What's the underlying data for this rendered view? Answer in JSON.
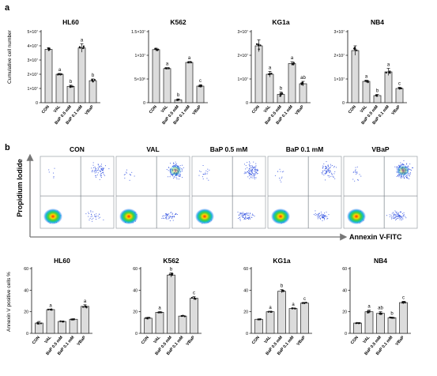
{
  "panel_a": {
    "label": "a",
    "ylabel": "Cumulative cell number",
    "categories": [
      "CON",
      "VAL",
      "BaP 0.5 mM",
      "BaP 0.1 mM",
      "VBaP"
    ],
    "charts": [
      {
        "title": "HL60",
        "ymax": 5,
        "unit_label": "×10⁷",
        "ticks": [
          {
            "v": 0,
            "label": "0"
          },
          {
            "v": 1,
            "label": "1×10⁷"
          },
          {
            "v": 2,
            "label": "2×10⁷"
          },
          {
            "v": 3,
            "label": "3×10⁷"
          },
          {
            "v": 4,
            "label": "4×10⁷"
          },
          {
            "v": 5,
            "label": "5×10⁷"
          }
        ],
        "values": [
          3.75,
          2.0,
          1.15,
          3.85,
          1.55
        ],
        "errors": [
          0.12,
          0.06,
          0.08,
          0.3,
          0.12
        ],
        "letters": [
          "",
          "a",
          "b",
          "a",
          "b"
        ]
      },
      {
        "title": "K562",
        "ymax": 1.5,
        "ticks": [
          {
            "v": 0,
            "label": "0"
          },
          {
            "v": 0.5,
            "label": "5×10⁶"
          },
          {
            "v": 1.0,
            "label": "1×10⁷"
          },
          {
            "v": 1.5,
            "label": "1.5×10⁷"
          }
        ],
        "values": [
          1.12,
          0.72,
          0.06,
          0.85,
          0.35
        ],
        "errors": [
          0.03,
          0.02,
          0.02,
          0.02,
          0.03
        ],
        "letters": [
          "",
          "a",
          "b",
          "a",
          "c"
        ]
      },
      {
        "title": "KG1a",
        "ymax": 3,
        "ticks": [
          {
            "v": 0,
            "label": "0"
          },
          {
            "v": 1,
            "label": "1×10⁷"
          },
          {
            "v": 2,
            "label": "2×10⁷"
          },
          {
            "v": 3,
            "label": "3×10⁷"
          }
        ],
        "values": [
          2.4,
          1.2,
          0.35,
          1.65,
          0.8
        ],
        "errors": [
          0.25,
          0.12,
          0.1,
          0.08,
          0.1
        ],
        "letters": [
          "",
          "a",
          "b",
          "a",
          "ab"
        ]
      },
      {
        "title": "NB4",
        "ymax": 3,
        "ticks": [
          {
            "v": 0,
            "label": "0"
          },
          {
            "v": 1,
            "label": "1×10⁷"
          },
          {
            "v": 2,
            "label": "2×10⁷"
          },
          {
            "v": 3,
            "label": "3×10⁷"
          }
        ],
        "values": [
          2.2,
          0.9,
          0.3,
          1.3,
          0.6
        ],
        "errors": [
          0.2,
          0.05,
          0.05,
          0.15,
          0.05
        ],
        "letters": [
          "",
          "a",
          "b",
          "a",
          "c"
        ]
      }
    ]
  },
  "panel_b": {
    "label": "b",
    "y_axis_label": "Propidium Iodide",
    "x_axis_label": "Annexin V-FITC",
    "plots": [
      "CON",
      "VAL",
      "BaP 0.5 mM",
      "BaP 0.1 mM",
      "VBaP"
    ]
  },
  "panel_c": {
    "ylabel": "Annexin V positive cells %",
    "categories": [
      "CON",
      "VAL",
      "BaP 0.5 mM",
      "BaP 0.1 mM",
      "VBaP"
    ],
    "ticks": [
      0,
      20,
      40,
      60
    ],
    "ymax": 60,
    "charts": [
      {
        "title": "HL60",
        "values": [
          9.5,
          22,
          11,
          13,
          25
        ],
        "errors": [
          1.5,
          0.5,
          0.5,
          0.5,
          1.5
        ],
        "letters": [
          "",
          "a",
          "",
          "",
          "a"
        ]
      },
      {
        "title": "K562",
        "values": [
          14,
          19.5,
          54,
          16,
          32.5
        ],
        "errors": [
          1,
          0.5,
          2,
          0.5,
          1.5
        ],
        "letters": [
          "",
          "a",
          "b",
          "",
          "c"
        ]
      },
      {
        "title": "KG1a",
        "values": [
          13,
          20,
          39,
          23,
          28
        ],
        "errors": [
          0.3,
          0.5,
          1.5,
          0.5,
          0.7
        ],
        "letters": [
          "",
          "a",
          "b",
          "a",
          "c"
        ]
      },
      {
        "title": "NB4",
        "values": [
          9.5,
          20,
          18.5,
          14.5,
          28.5
        ],
        "errors": [
          0.5,
          1.5,
          1.5,
          0.5,
          1.2
        ],
        "letters": [
          "",
          "a",
          "ab",
          "b",
          "c"
        ]
      }
    ]
  },
  "chart_data": [
    {
      "type": "bar",
      "title": "HL60",
      "ylabel": "Cumulative cell number",
      "categories": [
        "CON",
        "VAL",
        "BaP 0.5 mM",
        "BaP 0.1 mM",
        "VBaP"
      ],
      "values": [
        37500000.0,
        20000000.0,
        11500000.0,
        38500000.0,
        15500000.0
      ],
      "ylim": [
        0,
        50000000.0
      ]
    },
    {
      "type": "bar",
      "title": "K562",
      "categories": [
        "CON",
        "VAL",
        "BaP 0.5 mM",
        "BaP 0.1 mM",
        "VBaP"
      ],
      "values": [
        11200000.0,
        7200000.0,
        600000.0,
        8500000.0,
        3500000.0
      ],
      "ylim": [
        0,
        15000000.0
      ]
    },
    {
      "type": "bar",
      "title": "KG1a",
      "categories": [
        "CON",
        "VAL",
        "BaP 0.5 mM",
        "BaP 0.1 mM",
        "VBaP"
      ],
      "values": [
        24000000.0,
        12000000.0,
        3500000.0,
        16500000.0,
        8000000.0
      ],
      "ylim": [
        0,
        30000000.0
      ]
    },
    {
      "type": "bar",
      "title": "NB4",
      "categories": [
        "CON",
        "VAL",
        "BaP 0.5 mM",
        "BaP 0.1 mM",
        "VBaP"
      ],
      "values": [
        22000000.0,
        9000000.0,
        3000000.0,
        13000000.0,
        6000000.0
      ],
      "ylim": [
        0,
        30000000.0
      ]
    },
    {
      "type": "bar",
      "title": "HL60",
      "ylabel": "Annexin V positive cells %",
      "categories": [
        "CON",
        "VAL",
        "BaP 0.5 mM",
        "BaP 0.1 mM",
        "VBaP"
      ],
      "values": [
        9.5,
        22,
        11,
        13,
        25
      ],
      "ylim": [
        0,
        60
      ]
    },
    {
      "type": "bar",
      "title": "K562",
      "categories": [
        "CON",
        "VAL",
        "BaP 0.5 mM",
        "BaP 0.1 mM",
        "VBaP"
      ],
      "values": [
        14,
        19.5,
        54,
        16,
        32.5
      ],
      "ylim": [
        0,
        60
      ]
    },
    {
      "type": "bar",
      "title": "KG1a",
      "categories": [
        "CON",
        "VAL",
        "BaP 0.5 mM",
        "BaP 0.1 mM",
        "VBaP"
      ],
      "values": [
        13,
        20,
        39,
        23,
        28
      ],
      "ylim": [
        0,
        60
      ]
    },
    {
      "type": "bar",
      "title": "NB4",
      "categories": [
        "CON",
        "VAL",
        "BaP 0.5 mM",
        "BaP 0.1 mM",
        "VBaP"
      ],
      "values": [
        9.5,
        20,
        18.5,
        14.5,
        28.5
      ],
      "ylim": [
        0,
        60
      ]
    }
  ]
}
